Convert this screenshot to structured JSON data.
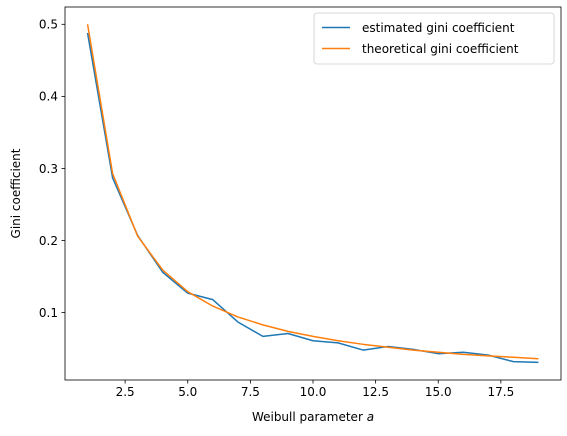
{
  "chart_data": {
    "type": "line",
    "title": "",
    "xlabel": "Weibull parameter ",
    "xlabel_italic": "a",
    "ylabel": "Gini coefficient",
    "xlim": [
      0.1,
      19.9
    ],
    "ylim": [
      0.0065,
      0.524
    ],
    "grid": false,
    "legend_position": "upper right",
    "x_ticks": [
      2.5,
      5.0,
      7.5,
      10.0,
      12.5,
      15.0,
      17.5
    ],
    "x_tick_labels": [
      "2.5",
      "5.0",
      "7.5",
      "10.0",
      "12.5",
      "15.0",
      "17.5"
    ],
    "y_ticks": [
      0.1,
      0.2,
      0.3,
      0.4,
      0.5
    ],
    "y_tick_labels": [
      "0.1",
      "0.2",
      "0.3",
      "0.4",
      "0.5"
    ],
    "x": [
      1,
      2,
      3,
      4,
      5,
      6,
      7,
      8,
      9,
      10,
      11,
      12,
      13,
      14,
      15,
      16,
      17,
      18,
      19
    ],
    "series": [
      {
        "name": "estimated gini coefficient",
        "color": "#1f77b4",
        "values": [
          0.488,
          0.287,
          0.207,
          0.156,
          0.127,
          0.118,
          0.087,
          0.067,
          0.071,
          0.061,
          0.058,
          0.048,
          0.053,
          0.049,
          0.043,
          0.045,
          0.041,
          0.032,
          0.031
        ]
      },
      {
        "name": "theoretical gini coefficient",
        "color": "#ff7f0e",
        "values": [
          0.5,
          0.293,
          0.206,
          0.159,
          0.129,
          0.109,
          0.094,
          0.083,
          0.074,
          0.067,
          0.061,
          0.056,
          0.052,
          0.048,
          0.045,
          0.042,
          0.04,
          0.038,
          0.036
        ]
      }
    ]
  }
}
